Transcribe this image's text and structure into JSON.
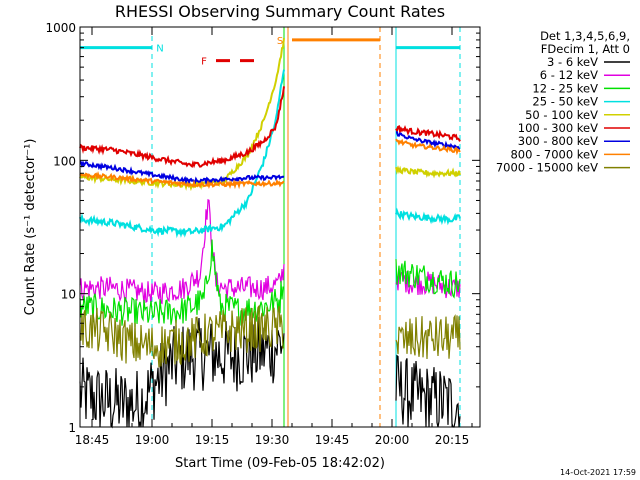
{
  "chart_data": {
    "type": "line",
    "title": "RHESSI Observing Summary Count Rates",
    "xlabel": "Start Time (09-Feb-05 18:42:02)",
    "ylabel": "Count Rate (s⁻¹ detector⁻¹)",
    "y_scale": "log",
    "ylim": [
      1,
      1000
    ],
    "xlim": [
      "18:42",
      "20:22"
    ],
    "x_ticks": [
      "18:45",
      "19:00",
      "19:15",
      "19:30",
      "19:45",
      "20:00",
      "20:15"
    ],
    "y_ticks": [
      "1",
      "10",
      "100",
      "1000"
    ],
    "legend_header": [
      "Det 1,3,4,5,6,9,",
      "FDecim 1, Att 0"
    ],
    "legend_position": "right",
    "timestamp": "14-Oct-2021 17:59",
    "flags": [
      {
        "label": "N",
        "color": "#00e0e0"
      },
      {
        "label": "F",
        "color": "#e00000"
      },
      {
        "label": "S",
        "color": "#ff8000"
      }
    ],
    "series": [
      {
        "name": "3 - 6 keV",
        "color": "#000000",
        "segments": [
          {
            "x": [
              "18:42",
              "18:47",
              "18:52",
              "18:57",
              "19:00",
              "19:05",
              "19:10",
              "19:15",
              "19:20",
              "19:25",
              "19:30",
              "19:33"
            ],
            "y": [
              1.8,
              1.6,
              1.5,
              1.5,
              2.0,
              3.0,
              3.5,
              3.5,
              3.4,
              3.6,
              3.8,
              4.5
            ]
          },
          {
            "x": [
              "20:01",
              "20:05",
              "20:10",
              "20:15",
              "20:17"
            ],
            "y": [
              2.0,
              1.7,
              1.6,
              1.5,
              1.5
            ]
          }
        ]
      },
      {
        "name": "6 - 12 keV",
        "color": "#e000e0",
        "segments": [
          {
            "x": [
              "18:42",
              "18:50",
              "19:00",
              "19:08",
              "19:12",
              "19:14",
              "19:16",
              "19:18",
              "19:22",
              "19:28",
              "19:32",
              "19:33"
            ],
            "y": [
              11,
              11,
              10,
              11,
              14,
              50,
              12,
              11,
              11,
              11,
              12,
              16
            ]
          },
          {
            "x": [
              "20:01",
              "20:05",
              "20:10",
              "20:15",
              "20:17"
            ],
            "y": [
              13,
              12,
              12,
              11,
              11
            ]
          }
        ]
      },
      {
        "name": "12 - 25 keV",
        "color": "#00e000",
        "segments": [
          {
            "x": [
              "18:42",
              "18:50",
              "19:00",
              "19:08",
              "19:13",
              "19:15",
              "19:17",
              "19:22",
              "19:28",
              "19:32",
              "19:33"
            ],
            "y": [
              8,
              7.5,
              7,
              7.5,
              9,
              22,
              8,
              7.5,
              8,
              9,
              14
            ]
          },
          {
            "x": [
              "20:01",
              "20:05",
              "20:10",
              "20:15",
              "20:17"
            ],
            "y": [
              15,
              14,
              13,
              12,
              12
            ]
          }
        ]
      },
      {
        "name": "25 - 50 keV",
        "color": "#00e0e0",
        "segments": [
          {
            "x": [
              "18:42",
              "18:50",
              "19:00",
              "19:10",
              "19:18",
              "19:24",
              "19:28",
              "19:31",
              "19:33"
            ],
            "y": [
              36,
              34,
              30,
              29,
              32,
              50,
              100,
              200,
              500
            ]
          },
          {
            "x": [
              "20:01",
              "20:05",
              "20:10",
              "20:15",
              "20:17"
            ],
            "y": [
              40,
              38,
              37,
              36,
              37
            ]
          }
        ]
      },
      {
        "name": "50 - 100 keV",
        "color": "#d0d000",
        "segments": [
          {
            "x": [
              "18:42",
              "18:50",
              "19:00",
              "19:10",
              "19:18",
              "19:24",
              "19:28",
              "19:31",
              "19:33"
            ],
            "y": [
              75,
              72,
              68,
              65,
              70,
              110,
              200,
              400,
              800
            ]
          },
          {
            "x": [
              "20:01",
              "20:05",
              "20:10",
              "20:15",
              "20:17"
            ],
            "y": [
              85,
              82,
              80,
              80,
              80
            ]
          }
        ]
      },
      {
        "name": "100 - 300 keV",
        "color": "#e00000",
        "segments": [
          {
            "x": [
              "18:42",
              "18:50",
              "19:00",
              "19:10",
              "19:18",
              "19:24",
              "19:28",
              "19:31",
              "19:33"
            ],
            "y": [
              125,
              120,
              105,
              92,
              100,
              115,
              140,
              180,
              350
            ]
          },
          {
            "x": [
              "20:01",
              "20:05",
              "20:10",
              "20:15",
              "20:17"
            ],
            "y": [
              175,
              165,
              158,
              150,
              145
            ]
          }
        ]
      },
      {
        "name": "300 - 800 keV",
        "color": "#0000e0",
        "segments": [
          {
            "x": [
              "18:42",
              "18:50",
              "19:00",
              "19:10",
              "19:18",
              "19:24",
              "19:30",
              "19:33"
            ],
            "y": [
              95,
              88,
              78,
              70,
              72,
              74,
              74,
              75
            ]
          },
          {
            "x": [
              "20:01",
              "20:05",
              "20:10",
              "20:15",
              "20:17"
            ],
            "y": [
              160,
              145,
              135,
              128,
              125
            ]
          }
        ]
      },
      {
        "name": "800 - 7000 keV",
        "color": "#ff8000",
        "segments": [
          {
            "x": [
              "18:42",
              "18:50",
              "19:00",
              "19:10",
              "19:18",
              "19:24",
              "19:30",
              "19:33"
            ],
            "y": [
              78,
              75,
              70,
              66,
              66,
              67,
              67,
              68
            ]
          },
          {
            "x": [
              "20:01",
              "20:05",
              "20:10",
              "20:15",
              "20:17"
            ],
            "y": [
              140,
              130,
              125,
              120,
              118
            ]
          }
        ]
      },
      {
        "name": "7000 - 15000 keV",
        "color": "#808000",
        "segments": [
          {
            "x": [
              "18:42",
              "18:50",
              "18:55",
              "19:00",
              "19:10",
              "19:15",
              "19:20",
              "19:25",
              "19:30",
              "19:33"
            ],
            "y": [
              5.5,
              5.0,
              4.2,
              4.0,
              4.5,
              5.0,
              5.3,
              5.4,
              5.5,
              5.5
            ]
          },
          {
            "x": [
              "20:01",
              "20:05",
              "20:10",
              "20:15",
              "20:17"
            ],
            "y": [
              4.3,
              4.5,
              4.6,
              4.6,
              4.7
            ]
          }
        ]
      }
    ],
    "vlines": [
      {
        "x": "18:42",
        "color": "#00e0e0",
        "style": "solid"
      },
      {
        "x": "19:00",
        "color": "#00e0e0",
        "style": "dashed"
      },
      {
        "x": "19:33",
        "color": "#00e000",
        "style": "solid"
      },
      {
        "x": "19:34",
        "color": "#ff8000",
        "style": "solid"
      },
      {
        "x": "19:57",
        "color": "#ff8000",
        "style": "dashed"
      },
      {
        "x": "20:01",
        "color": "#00e0e0",
        "style": "solid"
      },
      {
        "x": "20:17",
        "color": "#00e0e0",
        "style": "dashed"
      }
    ],
    "flag_bars": [
      {
        "flag": "N",
        "x1": "18:42",
        "x2": "19:00",
        "y": 700,
        "color": "#00e0e0",
        "style": "solid"
      },
      {
        "flag": "N",
        "x1": "20:01",
        "x2": "20:17",
        "y": 700,
        "color": "#00e0e0",
        "style": "solid"
      },
      {
        "flag": "F",
        "x1": "19:16",
        "x2": "19:27",
        "y": 560,
        "color": "#e00000",
        "style": "dashed"
      },
      {
        "flag": "S",
        "x1": "19:35",
        "x2": "19:57",
        "y": 800,
        "color": "#ff8000",
        "style": "solid"
      }
    ]
  }
}
